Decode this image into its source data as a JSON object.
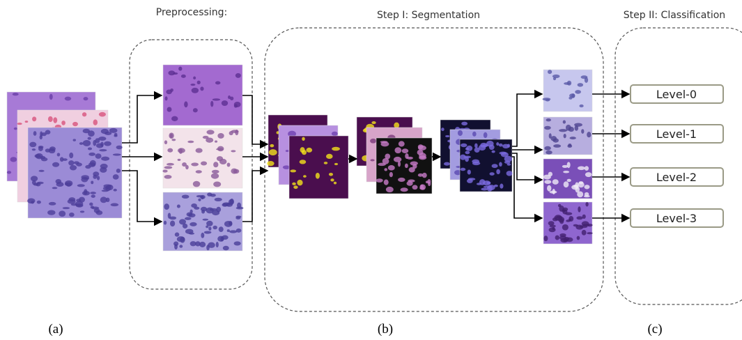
{
  "sections": {
    "preprocessing": {
      "title": "Preprocessing:"
    },
    "segmentation": {
      "title": "Step I: Segmentation"
    },
    "classification": {
      "title": "Step II: Classification"
    }
  },
  "levels": [
    "Level-0",
    "Level-1",
    "Level-2",
    "Level-3"
  ],
  "panel_labels": [
    "(a)",
    "(b)",
    "(c)"
  ]
}
